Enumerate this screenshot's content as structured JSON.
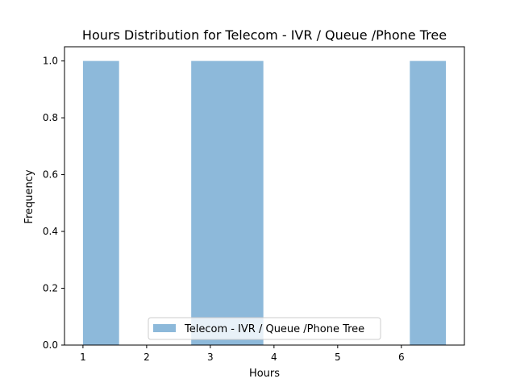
{
  "chart_data": {
    "type": "bar",
    "title": "Hours Distribution for Telecom - IVR / Queue /Phone Tree",
    "xlabel": "Hours",
    "ylabel": "Frequency",
    "xlim": [
      0.71,
      6.99
    ],
    "ylim": [
      0,
      1.05
    ],
    "xticks": [
      "1",
      "2",
      "3",
      "4",
      "5",
      "6"
    ],
    "yticks": [
      "0.0",
      "0.2",
      "0.4",
      "0.6",
      "0.8",
      "1.0"
    ],
    "bins": [
      {
        "start": 1.0,
        "end": 1.567,
        "count": 1
      },
      {
        "start": 2.7,
        "end": 3.833,
        "count": 1
      },
      {
        "start": 6.133,
        "end": 6.7,
        "count": 1
      }
    ],
    "series": [
      {
        "name": "Telecom - IVR / Queue /Phone Tree",
        "color": "#8db9da"
      }
    ],
    "legend_position": "bottom-center",
    "grid": false
  }
}
